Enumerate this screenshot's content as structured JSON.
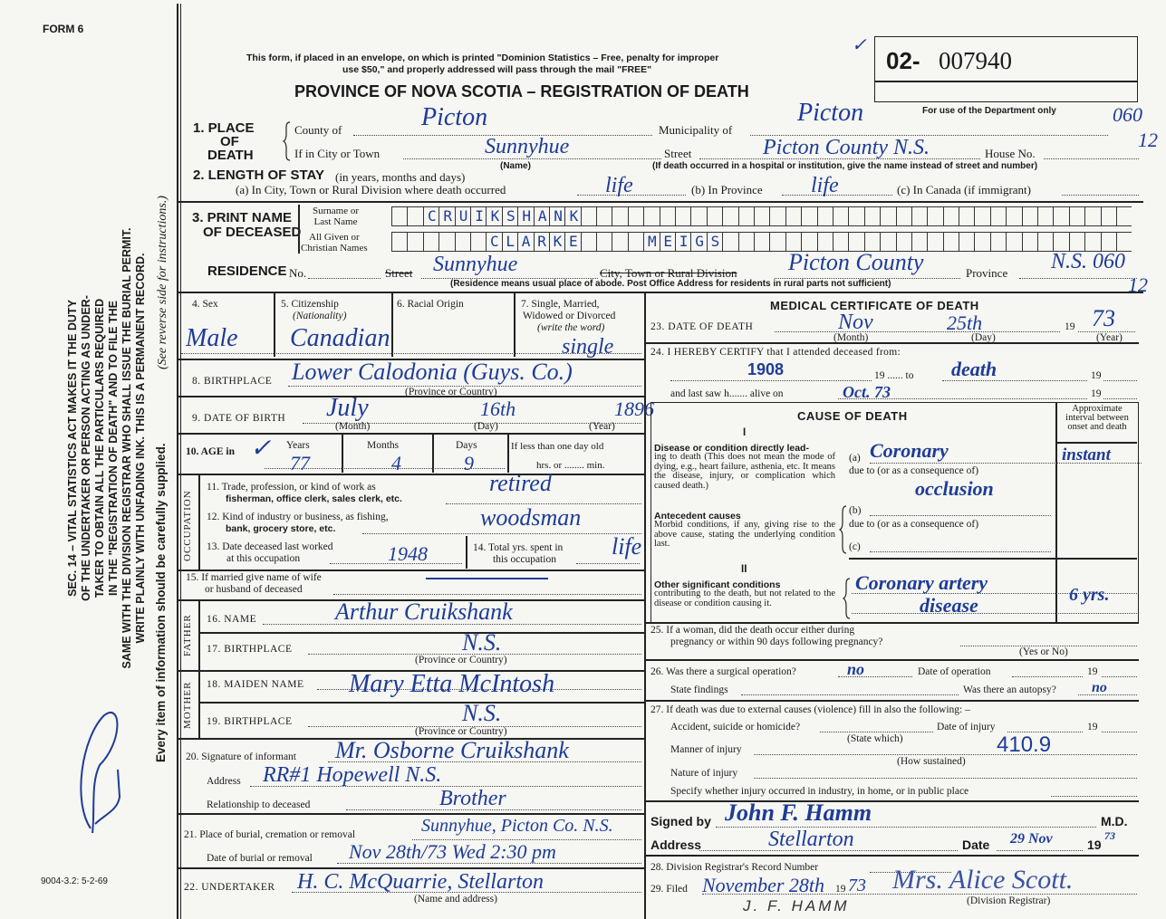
{
  "form_number": "FORM 6",
  "form_code": "9004-3.2: 5-2-69",
  "left_margin": {
    "statute_lines": [
      "SEC. 14 – VITAL STATISTICS ACT MAKES IT THE DUTY",
      "OF THE UNDERTAKER OR PERSON ACTING AS UNDER-",
      "TAKER TO OBTAIN ALL THE PARTICULARS REQUIRED",
      "IN THE \"REGISTRATION OF DEATH\" AND TO FILE THE",
      "SAME WITH THE DIVISION REGISTRAR WHO SHALL ISSUE THE BURIAL PERMIT.",
      "WRITE PLAINLY WITH UNFADING INK. THIS IS A PERMANENT RECORD."
    ],
    "reverse_note": "(See reverse side for instructions.)",
    "supply_note": "Every item of information should be carefully supplied."
  },
  "header": {
    "mailing_note_line1": "This form, if placed in an envelope, on which is printed \"Dominion Statistics – Free, penalty for improper",
    "mailing_note_line2": "use $50,\" and properly addressed will pass through the mail \"FREE\"",
    "title": "PROVINCE OF NOVA SCOTIA – REGISTRATION OF DEATH",
    "registration_prefix": "02-",
    "registration_number": "007940",
    "department_note": "For use of the Department only",
    "dept_code_1": "060",
    "dept_code_2": "12"
  },
  "place_of_death": {
    "label_1": "1. PLACE",
    "label_2": "OF",
    "label_3": "DEATH",
    "county_label": "County of",
    "county": "Picton",
    "municipality_label": "Municipality of",
    "municipality": "Picton",
    "city_label": "If in City or Town",
    "city": "Sunnyhue",
    "name_note": "(Name)",
    "street_label": "Street",
    "street": "Picton County N.S.",
    "house_label": "House No.",
    "hospital_note": "(If death occurred in a hospital or institution, give the name instead of street and number)"
  },
  "length_of_stay": {
    "label": "2. LENGTH OF STAY",
    "sub": "(in years, months and days)",
    "a_label": "(a) In City, Town or Rural Division where death occurred",
    "a": "life",
    "b_label": "(b) In Province",
    "b": "life",
    "c_label": "(c) In Canada (if immigrant)"
  },
  "name": {
    "label_1": "3. PRINT NAME",
    "label_2": "OF DECEASED",
    "surname_label_1": "Surname or",
    "surname_label_2": "Last Name",
    "given_label_1": "All Given or",
    "given_label_2": "Christian Names",
    "surname": "CRUIKSHANK",
    "given_1": "CLARKE",
    "given_2": "MEIGS"
  },
  "residence": {
    "label": "RESIDENCE",
    "no_label": "No.",
    "street_label": "Street",
    "street": "Sunnyhue",
    "city_label": "City, Town or Rural Division",
    "city": "Picton County",
    "province_label": "Province",
    "province": "N.S. 060",
    "code": "12",
    "note": "(Residence means usual place of abode. Post Office Address for residents in rural parts not sufficient)"
  },
  "personal": {
    "sex_label": "4. Sex",
    "sex": "Male",
    "citizenship_label": "5. Citizenship",
    "citizenship_sub": "(Nationality)",
    "citizenship": "Canadian",
    "racial_label": "6. Racial Origin",
    "marital_label_1": "7. Single, Married,",
    "marital_label_2": "Widowed or Divorced",
    "marital_label_3": "(write the word)",
    "marital": "single",
    "birthplace_label": "8. BIRTHPLACE",
    "birthplace": "Lower Calodonia (Guys. Co.)",
    "birthplace_note": "(Province or Country)",
    "dob_label": "9. DATE OF BIRTH",
    "dob_month": "July",
    "dob_day": "16th",
    "dob_year": "1896",
    "month_label": "(Month)",
    "day_label": "(Day)",
    "year_label": "(Year)",
    "age_label": "10. AGE in",
    "years_label": "Years",
    "months_label": "Months",
    "days_label": "Days",
    "age_years": "77",
    "age_months": "4",
    "age_days": "9",
    "less_than_day": "If less than one day old",
    "hrs_min": "hrs. or ........ min."
  },
  "occupation": {
    "section_label": "OCCUPATION",
    "q11_1": "11. Trade, profession, or kind of work as",
    "q11_2": "fisherman, office clerk, sales clerk, etc.",
    "trade": "retired",
    "q12_1": "12. Kind of industry or business, as fishing,",
    "q12_2": "bank, grocery store, etc.",
    "industry": "woodsman",
    "q13_1": "13. Date deceased last worked",
    "q13_2": "at this occupation",
    "last_worked": "1948",
    "q14_1": "14. Total yrs. spent in",
    "q14_2": "this occupation",
    "total_years": "life"
  },
  "spouse": {
    "q15_1": "15. If married give name of wife",
    "q15_2": "or husband of deceased"
  },
  "father": {
    "section_label": "FATHER",
    "name_label": "16. NAME",
    "name": "Arthur Cruikshank",
    "birthplace_label": "17. BIRTHPLACE",
    "birthplace": "N.S.",
    "note": "(Province or Country)"
  },
  "mother": {
    "section_label": "MOTHER",
    "name_label": "18. MAIDEN NAME",
    "name": "Mary Etta McIntosh",
    "birthplace_label": "19. BIRTHPLACE",
    "birthplace": "N.S.",
    "note": "(Province or Country)"
  },
  "informant": {
    "sig_label": "20. Signature of informant",
    "signature": "Mr. Osborne Cruikshank",
    "address_label": "Address",
    "address": "RR#1 Hopewell N.S.",
    "relationship_label": "Relationship to deceased",
    "relationship": "Brother"
  },
  "burial": {
    "place_label": "21. Place of burial, cremation or removal",
    "place": "Sunnyhue, Picton Co. N.S.",
    "date_label": "Date of burial or removal",
    "date": "Nov 28th/73 Wed 2:30 pm"
  },
  "undertaker": {
    "label": "22. UNDERTAKER",
    "value": "H. C. McQuarrie, Stellarton",
    "note": "(Name and address)"
  },
  "medical": {
    "title": "MEDICAL CERTIFICATE OF DEATH",
    "dod_label": "23. DATE OF DEATH",
    "dod_month": "Nov",
    "dod_day": "25th",
    "dod_year_prefix": "19",
    "dod_year": "73",
    "certify_label": "24. I HEREBY CERTIFY that I attended deceased from:",
    "from": "1908",
    "to_label": "19 ...... to",
    "to": "death",
    "to_year": "19",
    "last_saw_label": "and last saw h....... alive on",
    "last_saw": "Oct. 73",
    "last_saw_year": "19",
    "cause_title": "CAUSE OF DEATH",
    "part_1": "I",
    "part_2": "II",
    "interval_label": "Approximate interval between onset and death",
    "direct_label": "Disease or condition directly lead-",
    "direct_text": "ing to death (This does not mean the mode of dying, e.g., heart failure, asthenia, etc. It means the disease, injury, or complication which caused death.)",
    "a_label": "(a)",
    "cause_a_1": "Coronary",
    "cause_a_2": "occlusion",
    "interval_a": "instant",
    "due_to": "due to (or as a consequence of)",
    "antecedent_label": "Antecedent causes",
    "antecedent_text": "Morbid conditions, if any, giving rise to the above cause, stating the underlying condition last.",
    "b_label": "(b)",
    "c_label": "(c)",
    "other_label": "Other significant conditions",
    "other_text": "contributing to the death, but not related to the disease or condition causing it.",
    "other_1": "Coronary artery",
    "other_2": "disease",
    "interval_other": "6 yrs."
  },
  "pregnancy": {
    "q_1": "25. If a woman, did the death occur either during",
    "q_2": "pregnancy or within 90 days following pregnancy?",
    "note": "(Yes or No)"
  },
  "operation": {
    "q": "26. Was there a surgical operation?",
    "surgery": "no",
    "date_label": "Date of operation",
    "year": "19",
    "findings_label": "State findings",
    "autopsy_label": "Was there an autopsy?",
    "autopsy": "no"
  },
  "external": {
    "q": "27. If death was due to external causes (violence) fill in also the following: –",
    "accident_label": "Accident, suicide or homicide?",
    "state_which": "(State which)",
    "injury_date_label": "Date of injury",
    "year": "19",
    "manner_label": "Manner of injury",
    "code": "410.9",
    "how_sustained": "(How sustained)",
    "nature_label": "Nature of injury",
    "specify_label": "Specify whether injury occurred in industry, in home, or in public place"
  },
  "signature": {
    "signed_label": "Signed by",
    "signed": "John F. Hamm",
    "md": "M.D.",
    "address_label": "Address",
    "address": "Stellarton",
    "date_label": "Date",
    "date": "29 Nov",
    "year_prefix": "19",
    "year": "73"
  },
  "registrar": {
    "record_label": "28. Division Registrar's Record Number",
    "filed_label": "29. Filed",
    "filed": "November 28th",
    "year_prefix": "19",
    "year": "73",
    "registrar": "Mrs. Alice Scott.",
    "registrar_note": "(Division Registrar)",
    "stamp": "J. F. HAMM"
  },
  "colors": {
    "ink": "#1d3c96",
    "print": "#1a1a1a",
    "paper": "#f6f6f3"
  }
}
